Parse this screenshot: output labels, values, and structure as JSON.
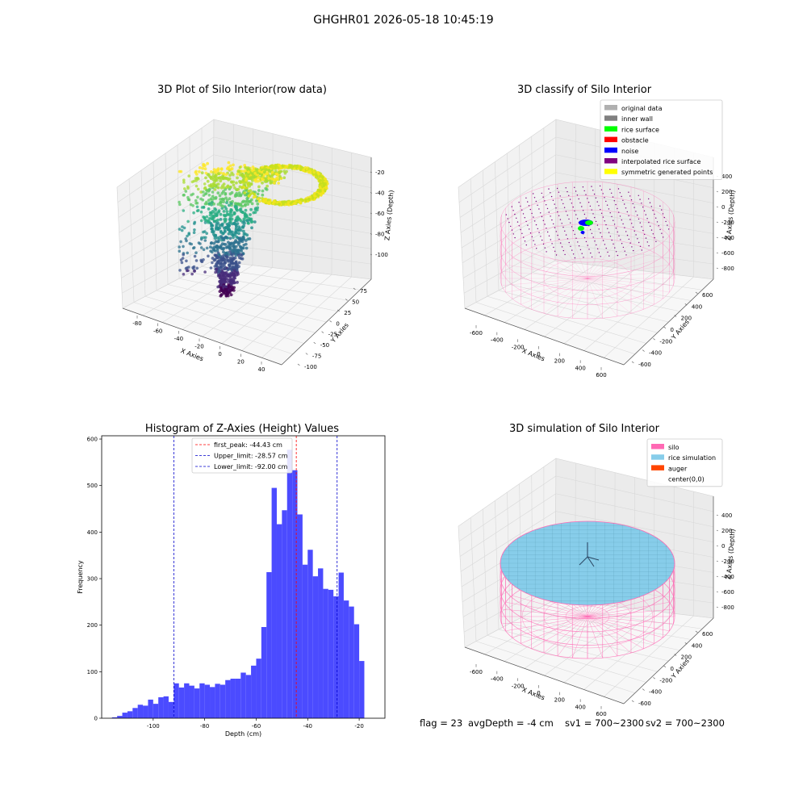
{
  "suptitle": "GHGHR01 2026-05-18 10:45:19",
  "footer": {
    "flag": "flag = 23",
    "avg_depth": "avgDepth = -4 cm",
    "sv1": "sv1 = 700~2300",
    "sv2": "sv2 = 700~2300"
  },
  "colors": {
    "hist_bar": "#4b4bff",
    "first_peak_line": "#ff0000",
    "upper_limit_line": "#0000cc",
    "lower_limit_line": "#0000cc",
    "silo": "#ff69b4",
    "rice_simulation": "#87cdea",
    "auger": "#ff4500",
    "original_data": "#b0b0b0",
    "inner_wall": "#808080",
    "rice_surface": "#00ff00",
    "obstacle": "#ff0000",
    "noise": "#0000ff",
    "interpolated_rice_surface": "#800080",
    "symmetric_generated_points": "#ffff00"
  },
  "chart_data": [
    {
      "type": "scatter",
      "title": "3D Plot of Silo Interior(row data)",
      "xlabel": "X Axies",
      "ylabel": "Y Axies",
      "zlabel": "Z Axies (Depth)",
      "x_ticks": [
        "-80",
        "-60",
        "-40",
        "-20",
        "0",
        "20",
        "40"
      ],
      "y_ticks": [
        "75",
        "50",
        "25",
        "0",
        "-25",
        "-50",
        "-75",
        "-100"
      ],
      "z_ticks": [
        "-20",
        "-40",
        "-60",
        "-80",
        "-100"
      ],
      "xlim": [
        -90,
        45
      ],
      "ylim": [
        -100,
        80
      ],
      "zlim": [
        -115,
        -15
      ],
      "colormap": "viridis (by depth)"
    },
    {
      "type": "scatter",
      "title": "3D classify of Silo Interior",
      "xlabel": "X Axies",
      "ylabel": "Y Axies",
      "zlabel": "Z Axies (Depth)",
      "x_ticks": [
        "-600",
        "-400",
        "-200",
        "0",
        "200",
        "400",
        "600"
      ],
      "y_ticks": [
        "600",
        "400",
        "200",
        "0",
        "-200",
        "-400",
        "-600"
      ],
      "z_ticks": [
        "400",
        "200",
        "0",
        "-200",
        "-400",
        "-600",
        "-800"
      ],
      "legend_position": "top-right",
      "legend": [
        {
          "label": "original data",
          "color": "#b0b0b0"
        },
        {
          "label": "inner wall",
          "color": "#808080"
        },
        {
          "label": "rice surface",
          "color": "#00ff00"
        },
        {
          "label": "obstacle",
          "color": "#ff0000"
        },
        {
          "label": "noise",
          "color": "#0000ff"
        },
        {
          "label": "interpolated rice surface",
          "color": "#800080"
        },
        {
          "label": "symmetric generated points",
          "color": "#ffff00"
        }
      ]
    },
    {
      "type": "bar",
      "title": "Histogram of Z-Axies (Height) Values",
      "xlabel": "Depth (cm)",
      "ylabel": "Frequency",
      "xlim": [
        -120,
        -10
      ],
      "ylim": [
        0,
        607
      ],
      "x_ticks": [
        "-100",
        "-80",
        "-60",
        "-40",
        "-20"
      ],
      "y_ticks": [
        "0",
        "100",
        "200",
        "300",
        "400",
        "500",
        "600"
      ],
      "bin_width": 2.0,
      "bin_starts": [
        -116,
        -114,
        -112,
        -110,
        -108,
        -106,
        -104,
        -102,
        -100,
        -98,
        -96,
        -94,
        -92,
        -90,
        -88,
        -86,
        -84,
        -82,
        -80,
        -78,
        -76,
        -74,
        -72,
        -70,
        -68,
        -66,
        -64,
        -62,
        -60,
        -58,
        -56,
        -54,
        -52,
        -50,
        -48,
        -46,
        -44,
        -42,
        -40,
        -38,
        -36,
        -34,
        -32,
        -30,
        -28,
        -26,
        -24,
        -22,
        -20,
        -18,
        -16
      ],
      "values": [
        2,
        5,
        12,
        15,
        22,
        29,
        27,
        40,
        31,
        45,
        47,
        35,
        75,
        66,
        75,
        70,
        64,
        75,
        72,
        67,
        74,
        72,
        82,
        85,
        85,
        98,
        93,
        113,
        128,
        196,
        314,
        495,
        417,
        447,
        577,
        533,
        438,
        330,
        362,
        305,
        322,
        278,
        276,
        262,
        313,
        253,
        240,
        202,
        123,
        0,
        0
      ],
      "vlines": [
        {
          "label": "first_peak: -44.43 cm",
          "x": -44.43,
          "color": "#ff0000"
        },
        {
          "label": "Upper_limit: -28.57 cm",
          "x": -28.57,
          "color": "#0000cc"
        },
        {
          "label": "Lower_limit: -92.00 cm",
          "x": -92.0,
          "color": "#0000cc"
        }
      ],
      "legend_position": "top-center"
    },
    {
      "type": "area",
      "title": "3D simulation of Silo Interior",
      "xlabel": "X Axies",
      "ylabel": "Y Axies",
      "zlabel": "Z Axies (Depth)",
      "x_ticks": [
        "-600",
        "-400",
        "-200",
        "0",
        "200",
        "400",
        "600"
      ],
      "y_ticks": [
        "600",
        "400",
        "200",
        "0",
        "-200",
        "-400",
        "-600"
      ],
      "z_ticks": [
        "400",
        "200",
        "0",
        "-200",
        "-400",
        "-600",
        "-800"
      ],
      "legend_position": "top-right",
      "legend": [
        {
          "label": "silo",
          "color": "#ff69b4"
        },
        {
          "label": "rice simulation",
          "color": "#87cdea"
        },
        {
          "label": "auger",
          "color": "#ff4500"
        },
        {
          "label": "center(0,0)",
          "color": ""
        }
      ]
    }
  ]
}
